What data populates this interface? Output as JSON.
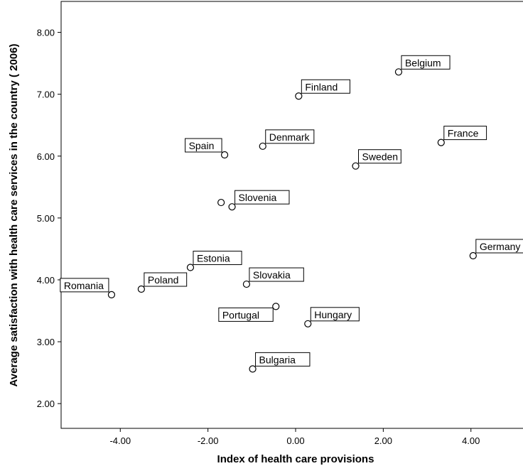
{
  "chart_data": {
    "type": "scatter",
    "xlabel": "Index of health care provisions",
    "ylabel": "Average satisfaction with health care services in the country ( 2006)",
    "xlim": [
      -5.35,
      5.35
    ],
    "ylim": [
      1.6,
      8.5
    ],
    "xticks": [
      -4.0,
      -2.0,
      0.0,
      2.0,
      4.0
    ],
    "yticks": [
      2.0,
      3.0,
      4.0,
      5.0,
      6.0,
      7.0,
      8.0
    ],
    "xtick_labels": [
      "-4.00",
      "-2.00",
      "0.00",
      "2.00",
      "4.00"
    ],
    "ytick_labels": [
      "2.00",
      "3.00",
      "4.00",
      "5.00",
      "6.00",
      "7.00",
      "8.00"
    ],
    "grid": false,
    "points": [
      {
        "label": "Belgium",
        "x": 2.35,
        "y": 7.36,
        "pos": "above-right"
      },
      {
        "label": "Finland",
        "x": 0.07,
        "y": 6.97,
        "pos": "above-right"
      },
      {
        "label": "Spain",
        "x": -1.62,
        "y": 6.02,
        "pos": "above-left"
      },
      {
        "label": "Denmark",
        "x": -0.75,
        "y": 6.16,
        "pos": "above-right"
      },
      {
        "label": "France",
        "x": 3.32,
        "y": 6.22,
        "pos": "above-right"
      },
      {
        "label": "Sweden",
        "x": 1.37,
        "y": 5.84,
        "pos": "above-right"
      },
      {
        "label": "",
        "x": -1.7,
        "y": 5.25,
        "pos": "none"
      },
      {
        "label": "Slovenia",
        "x": -1.45,
        "y": 5.18,
        "pos": "above-right"
      },
      {
        "label": "Germany",
        "x": 4.05,
        "y": 4.39,
        "pos": "above-right"
      },
      {
        "label": "Estonia",
        "x": -2.4,
        "y": 4.2,
        "pos": "above-right"
      },
      {
        "label": "Romania",
        "x": -4.2,
        "y": 3.76,
        "pos": "above-left"
      },
      {
        "label": "Poland",
        "x": -3.52,
        "y": 3.85,
        "pos": "above-right"
      },
      {
        "label": "Slovakia",
        "x": -1.12,
        "y": 3.93,
        "pos": "above-right"
      },
      {
        "label": "Portugal",
        "x": -0.45,
        "y": 3.57,
        "pos": "below-left"
      },
      {
        "label": "Hungary",
        "x": 0.28,
        "y": 3.29,
        "pos": "above-right"
      },
      {
        "label": "Bulgaria",
        "x": -0.98,
        "y": 2.56,
        "pos": "above-right"
      }
    ]
  }
}
